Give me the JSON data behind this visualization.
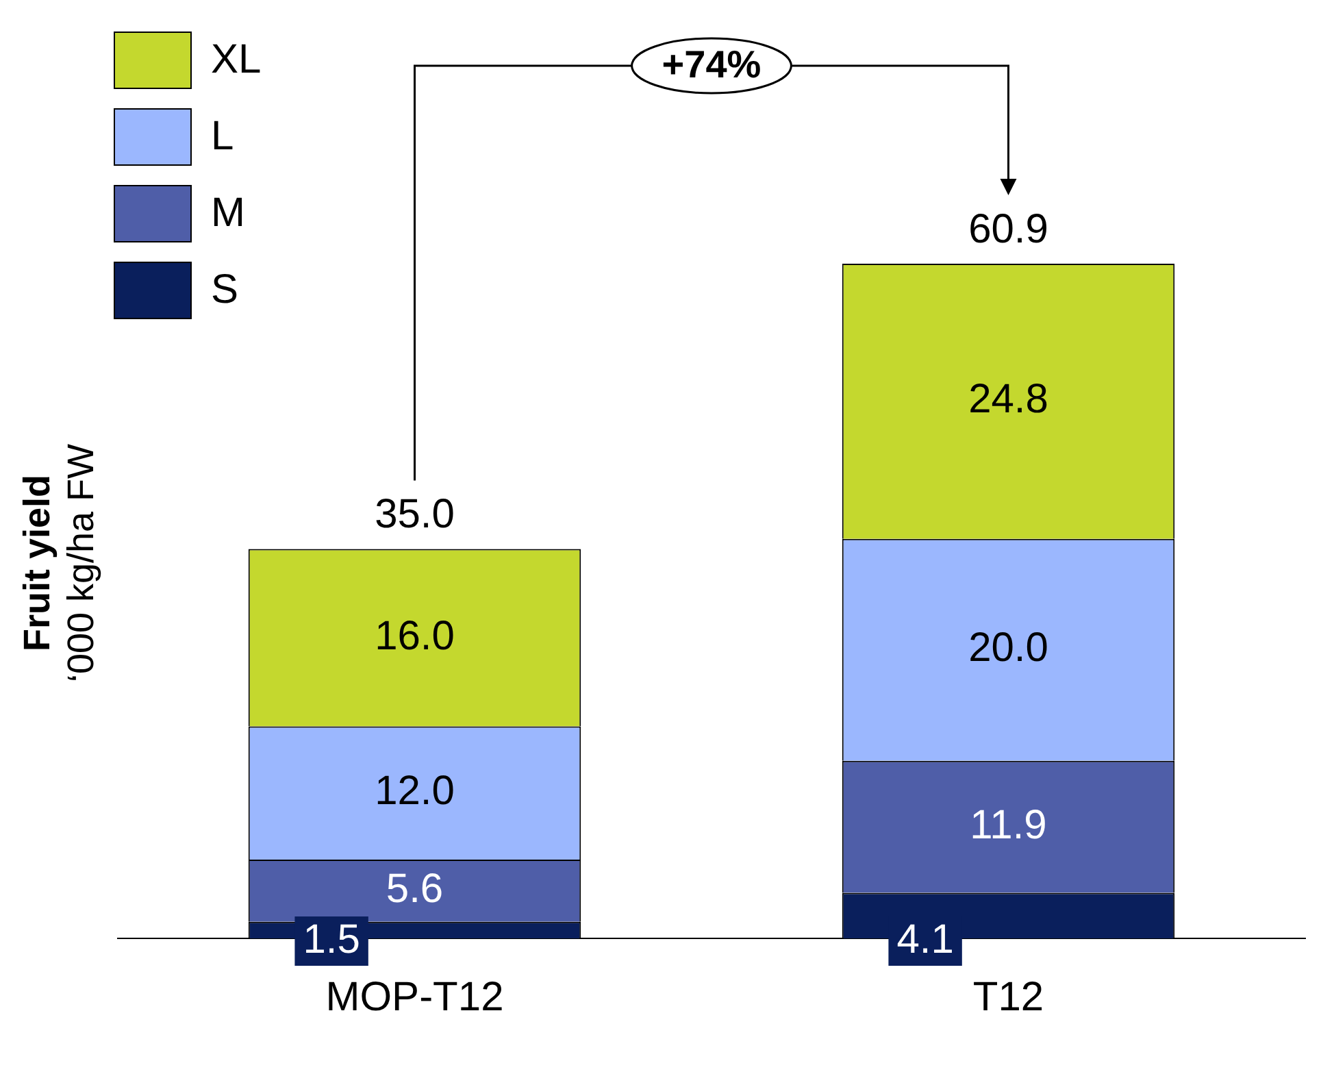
{
  "chart_data": {
    "type": "bar",
    "stacked": true,
    "ylabel": "Fruit yield\n‘000 kg/ha FW",
    "categories": [
      "MOP-T12",
      "T12"
    ],
    "series": [
      {
        "name": "S",
        "color": "#0a1f5c",
        "values": [
          1.5,
          4.1
        ],
        "value_labels": [
          "1.5",
          "4.1"
        ]
      },
      {
        "name": "M",
        "color": "#4f5ea8",
        "values": [
          5.6,
          11.9
        ],
        "value_labels": [
          "5.6",
          "11.9"
        ]
      },
      {
        "name": "L",
        "color": "#9bb7fe",
        "values": [
          12.0,
          20.0
        ],
        "value_labels": [
          "12.0",
          "20.0"
        ]
      },
      {
        "name": "XL",
        "color": "#c4d82e",
        "values": [
          16.0,
          24.8
        ],
        "value_labels": [
          "16.0",
          "24.8"
        ]
      }
    ],
    "totals": [
      "35.0",
      "60.9"
    ],
    "annotations": [
      "+74%"
    ],
    "tick_labels": "x",
    "grid": false,
    "legend": "top left"
  }
}
